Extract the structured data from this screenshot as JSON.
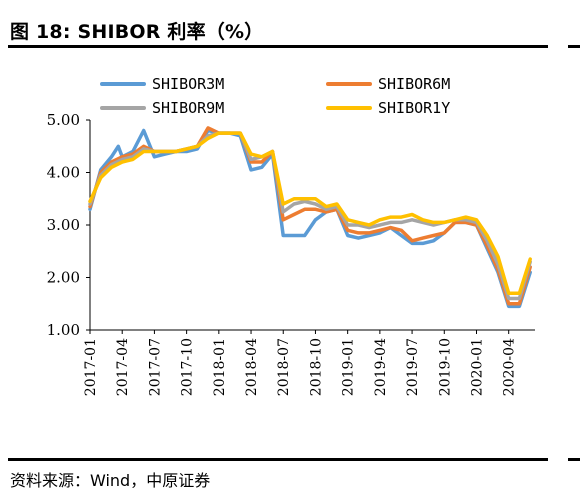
{
  "header": {
    "title": "图 18:  SHIBOR 利率（%）"
  },
  "footer": {
    "source": "资料来源：Wind，中原证券"
  },
  "colors": {
    "SHIBOR3M": "#5b9bd5",
    "SHIBOR6M": "#ed7d31",
    "SHIBOR9M": "#a5a5a5",
    "SHIBOR1Y": "#ffc000"
  },
  "chart_data": {
    "type": "line",
    "title": "",
    "xlabel": "",
    "ylabel": "",
    "ylim": [
      1.0,
      5.0
    ],
    "xlim": [
      "2017-01",
      "2020-06"
    ],
    "yticks": [
      "5.00",
      "4.00",
      "3.00",
      "2.00",
      "1.00"
    ],
    "xticks": [
      "2017-01",
      "2017-04",
      "2017-07",
      "2017-10",
      "2018-01",
      "2018-04",
      "2018-07",
      "2018-10",
      "2019-01",
      "2019-04",
      "2019-07",
      "2019-10",
      "2020-01",
      "2020-04"
    ],
    "legend": "top",
    "grid": false,
    "series": [
      {
        "name": "SHIBOR3M",
        "points": [
          [
            "2017-01",
            3.3
          ],
          [
            "2017-02",
            4.05
          ],
          [
            "2017-03",
            4.3
          ],
          [
            "2017-03-20",
            4.5
          ],
          [
            "2017-04",
            4.3
          ],
          [
            "2017-05",
            4.4
          ],
          [
            "2017-06",
            4.8
          ],
          [
            "2017-07",
            4.3
          ],
          [
            "2017-08",
            4.35
          ],
          [
            "2017-09",
            4.4
          ],
          [
            "2017-10",
            4.4
          ],
          [
            "2017-11",
            4.45
          ],
          [
            "2017-12",
            4.8
          ],
          [
            "2018-01",
            4.75
          ],
          [
            "2018-02",
            4.75
          ],
          [
            "2018-03",
            4.7
          ],
          [
            "2018-04",
            4.05
          ],
          [
            "2018-05",
            4.1
          ],
          [
            "2018-06",
            4.35
          ],
          [
            "2018-07",
            2.8
          ],
          [
            "2018-08",
            2.8
          ],
          [
            "2018-09",
            2.8
          ],
          [
            "2018-10",
            3.1
          ],
          [
            "2018-11",
            3.25
          ],
          [
            "2018-12",
            3.3
          ],
          [
            "2019-01",
            2.8
          ],
          [
            "2019-02",
            2.75
          ],
          [
            "2019-03",
            2.8
          ],
          [
            "2019-04",
            2.85
          ],
          [
            "2019-05",
            2.95
          ],
          [
            "2019-06",
            2.8
          ],
          [
            "2019-07",
            2.65
          ],
          [
            "2019-08",
            2.65
          ],
          [
            "2019-09",
            2.7
          ],
          [
            "2019-10",
            2.85
          ],
          [
            "2019-11",
            3.05
          ],
          [
            "2019-12",
            3.05
          ],
          [
            "2020-01",
            3.0
          ],
          [
            "2020-02",
            2.55
          ],
          [
            "2020-03",
            2.1
          ],
          [
            "2020-04",
            1.45
          ],
          [
            "2020-05",
            1.45
          ],
          [
            "2020-06",
            2.1
          ]
        ]
      },
      {
        "name": "SHIBOR6M",
        "points": [
          [
            "2017-01",
            3.35
          ],
          [
            "2017-02",
            4.0
          ],
          [
            "2017-03",
            4.2
          ],
          [
            "2017-04",
            4.3
          ],
          [
            "2017-05",
            4.35
          ],
          [
            "2017-06",
            4.5
          ],
          [
            "2017-07",
            4.4
          ],
          [
            "2017-08",
            4.4
          ],
          [
            "2017-09",
            4.4
          ],
          [
            "2017-10",
            4.45
          ],
          [
            "2017-11",
            4.5
          ],
          [
            "2017-12",
            4.85
          ],
          [
            "2018-01",
            4.75
          ],
          [
            "2018-02",
            4.75
          ],
          [
            "2018-03",
            4.75
          ],
          [
            "2018-04",
            4.2
          ],
          [
            "2018-05",
            4.2
          ],
          [
            "2018-06",
            4.4
          ],
          [
            "2018-07",
            3.1
          ],
          [
            "2018-08",
            3.2
          ],
          [
            "2018-09",
            3.3
          ],
          [
            "2018-10",
            3.3
          ],
          [
            "2018-11",
            3.25
          ],
          [
            "2018-12",
            3.3
          ],
          [
            "2019-01",
            2.9
          ],
          [
            "2019-02",
            2.85
          ],
          [
            "2019-03",
            2.85
          ],
          [
            "2019-04",
            2.9
          ],
          [
            "2019-05",
            2.95
          ],
          [
            "2019-06",
            2.9
          ],
          [
            "2019-07",
            2.7
          ],
          [
            "2019-08",
            2.75
          ],
          [
            "2019-09",
            2.8
          ],
          [
            "2019-10",
            2.85
          ],
          [
            "2019-11",
            3.05
          ],
          [
            "2019-12",
            3.05
          ],
          [
            "2020-01",
            3.0
          ],
          [
            "2020-02",
            2.6
          ],
          [
            "2020-03",
            2.15
          ],
          [
            "2020-04",
            1.5
          ],
          [
            "2020-05",
            1.5
          ],
          [
            "2020-06",
            2.2
          ]
        ]
      },
      {
        "name": "SHIBOR9M",
        "points": [
          [
            "2017-01",
            3.4
          ],
          [
            "2017-02",
            3.95
          ],
          [
            "2017-03",
            4.15
          ],
          [
            "2017-04",
            4.25
          ],
          [
            "2017-05",
            4.3
          ],
          [
            "2017-06",
            4.45
          ],
          [
            "2017-07",
            4.4
          ],
          [
            "2017-08",
            4.4
          ],
          [
            "2017-09",
            4.4
          ],
          [
            "2017-10",
            4.45
          ],
          [
            "2017-11",
            4.5
          ],
          [
            "2017-12",
            4.7
          ],
          [
            "2018-01",
            4.75
          ],
          [
            "2018-02",
            4.75
          ],
          [
            "2018-03",
            4.75
          ],
          [
            "2018-04",
            4.25
          ],
          [
            "2018-05",
            4.3
          ],
          [
            "2018-06",
            4.4
          ],
          [
            "2018-07",
            3.25
          ],
          [
            "2018-08",
            3.4
          ],
          [
            "2018-09",
            3.45
          ],
          [
            "2018-10",
            3.4
          ],
          [
            "2018-11",
            3.3
          ],
          [
            "2018-12",
            3.35
          ],
          [
            "2019-01",
            3.0
          ],
          [
            "2019-02",
            3.0
          ],
          [
            "2019-03",
            2.95
          ],
          [
            "2019-04",
            3.0
          ],
          [
            "2019-05",
            3.05
          ],
          [
            "2019-06",
            3.05
          ],
          [
            "2019-07",
            3.1
          ],
          [
            "2019-08",
            3.05
          ],
          [
            "2019-09",
            3.0
          ],
          [
            "2019-10",
            3.05
          ],
          [
            "2019-11",
            3.1
          ],
          [
            "2019-12",
            3.1
          ],
          [
            "2020-01",
            3.05
          ],
          [
            "2020-02",
            2.7
          ],
          [
            "2020-03",
            2.25
          ],
          [
            "2020-04",
            1.6
          ],
          [
            "2020-05",
            1.6
          ],
          [
            "2020-06",
            2.3
          ]
        ]
      },
      {
        "name": "SHIBOR1Y",
        "points": [
          [
            "2017-01",
            3.45
          ],
          [
            "2017-02",
            3.9
          ],
          [
            "2017-03",
            4.1
          ],
          [
            "2017-04",
            4.2
          ],
          [
            "2017-05",
            4.25
          ],
          [
            "2017-06",
            4.4
          ],
          [
            "2017-07",
            4.4
          ],
          [
            "2017-08",
            4.4
          ],
          [
            "2017-09",
            4.4
          ],
          [
            "2017-10",
            4.45
          ],
          [
            "2017-11",
            4.5
          ],
          [
            "2017-12",
            4.65
          ],
          [
            "2018-01",
            4.75
          ],
          [
            "2018-02",
            4.75
          ],
          [
            "2018-03",
            4.75
          ],
          [
            "2018-04",
            4.35
          ],
          [
            "2018-05",
            4.3
          ],
          [
            "2018-06",
            4.4
          ],
          [
            "2018-07",
            3.4
          ],
          [
            "2018-08",
            3.5
          ],
          [
            "2018-09",
            3.5
          ],
          [
            "2018-10",
            3.5
          ],
          [
            "2018-11",
            3.35
          ],
          [
            "2018-12",
            3.4
          ],
          [
            "2019-01",
            3.1
          ],
          [
            "2019-02",
            3.05
          ],
          [
            "2019-03",
            3.0
          ],
          [
            "2019-04",
            3.1
          ],
          [
            "2019-05",
            3.15
          ],
          [
            "2019-06",
            3.15
          ],
          [
            "2019-07",
            3.2
          ],
          [
            "2019-08",
            3.1
          ],
          [
            "2019-09",
            3.05
          ],
          [
            "2019-10",
            3.05
          ],
          [
            "2019-11",
            3.1
          ],
          [
            "2019-12",
            3.15
          ],
          [
            "2020-01",
            3.1
          ],
          [
            "2020-02",
            2.8
          ],
          [
            "2020-03",
            2.4
          ],
          [
            "2020-04",
            1.7
          ],
          [
            "2020-05",
            1.7
          ],
          [
            "2020-06",
            2.35
          ]
        ]
      }
    ]
  }
}
